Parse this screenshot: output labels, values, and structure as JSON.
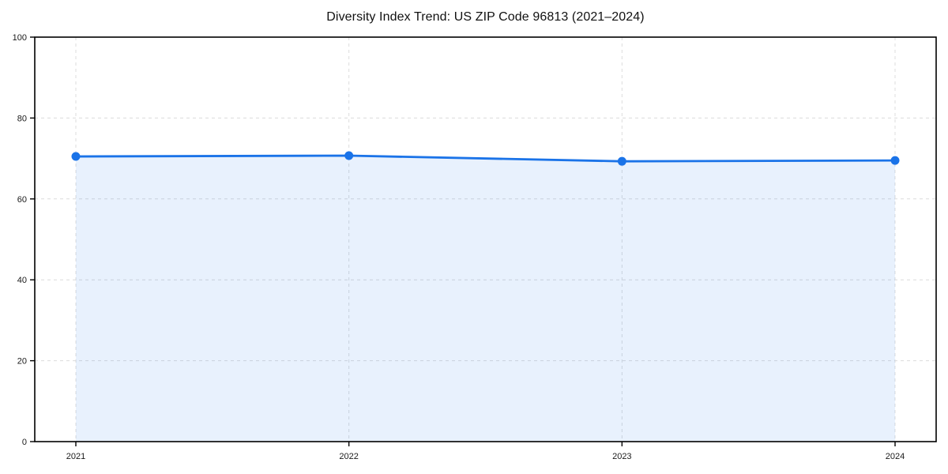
{
  "page": {
    "background_color": "#ffffff"
  },
  "chart_data": {
    "type": "line",
    "title": "Diversity Index Trend: US ZIP Code 96813 (2021–2024)",
    "categories": [
      "2021",
      "2022",
      "2023",
      "2024"
    ],
    "values": [
      70.5,
      70.7,
      69.3,
      69.5
    ],
    "xlabel": "",
    "ylabel": "",
    "ylim": [
      0,
      100
    ],
    "yticks": [
      0,
      20,
      40,
      60,
      80,
      100
    ],
    "grid": true,
    "grid_style": "dashed",
    "legend_position": "none",
    "marker": "circle",
    "fill_area_to_zero": true,
    "colors": {
      "line": "#1a73e8",
      "marker": "#1a73e8",
      "area_fill": "rgba(26,115,232,0.10)",
      "grid": "#dcdcdc",
      "spine": "#000000",
      "tick_label": "#1a1a1a",
      "title": "#111111"
    }
  }
}
